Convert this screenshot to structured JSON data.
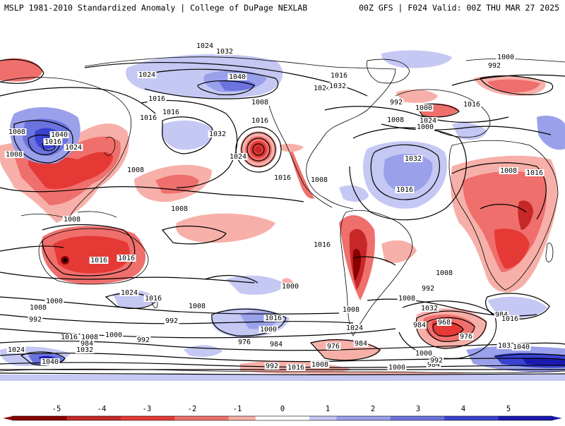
{
  "header": {
    "title": "MSLP 1981-2010 Standardized Anomaly | College of DuPage NEXLAB",
    "run_info": "00Z GFS | F024 Valid: 00Z THU MAR 27 2025"
  },
  "map": {
    "projection": "global cylindrical",
    "colors": {
      "neg5": "#8b0000",
      "neg4": "#c62828",
      "neg3": "#e53935",
      "neg2": "#ef6f6c",
      "neg1": "#f7b0a9",
      "pos1": "#c5c8f3",
      "pos2": "#9aa0ea",
      "pos3": "#6b73df",
      "pos4": "#3a43cf",
      "pos5": "#1a1ab0",
      "contour": "#000000",
      "coast": "#000000"
    },
    "isobar_labels": [
      "1024",
      "1032",
      "1040",
      "1024",
      "1016",
      "1016",
      "1008",
      "1016",
      "1032",
      "1040",
      "1016",
      "1024",
      "1008",
      "1008",
      "1016",
      "1032",
      "1024",
      "1016",
      "1008",
      "1008",
      "1016",
      "1000",
      "992",
      "1008",
      "1000",
      "1024",
      "1032",
      "1016",
      "1000",
      "992",
      "1008",
      "1016",
      "1024",
      "1016",
      "1008",
      "1016",
      "1016",
      "1008",
      "1016",
      "1024",
      "1000",
      "1016",
      "1008",
      "1008",
      "1000",
      "992",
      "1008",
      "984",
      "968",
      "984",
      "976",
      "1016",
      "1032",
      "1040",
      "1000",
      "992",
      "1016",
      "1008",
      "1024",
      "1032",
      "992",
      "1008",
      "1000",
      "984",
      "984",
      "1000",
      "992",
      "976",
      "984",
      "976",
      "984",
      "1016",
      "1008",
      "1024",
      "1032",
      "1040",
      "1016",
      "992",
      "1008",
      "1000",
      "992"
    ]
  },
  "colorbar": {
    "ticks": [
      "-5",
      "-4",
      "-3",
      "-2",
      "-1",
      "0",
      "1",
      "2",
      "3",
      "4",
      "5"
    ]
  }
}
